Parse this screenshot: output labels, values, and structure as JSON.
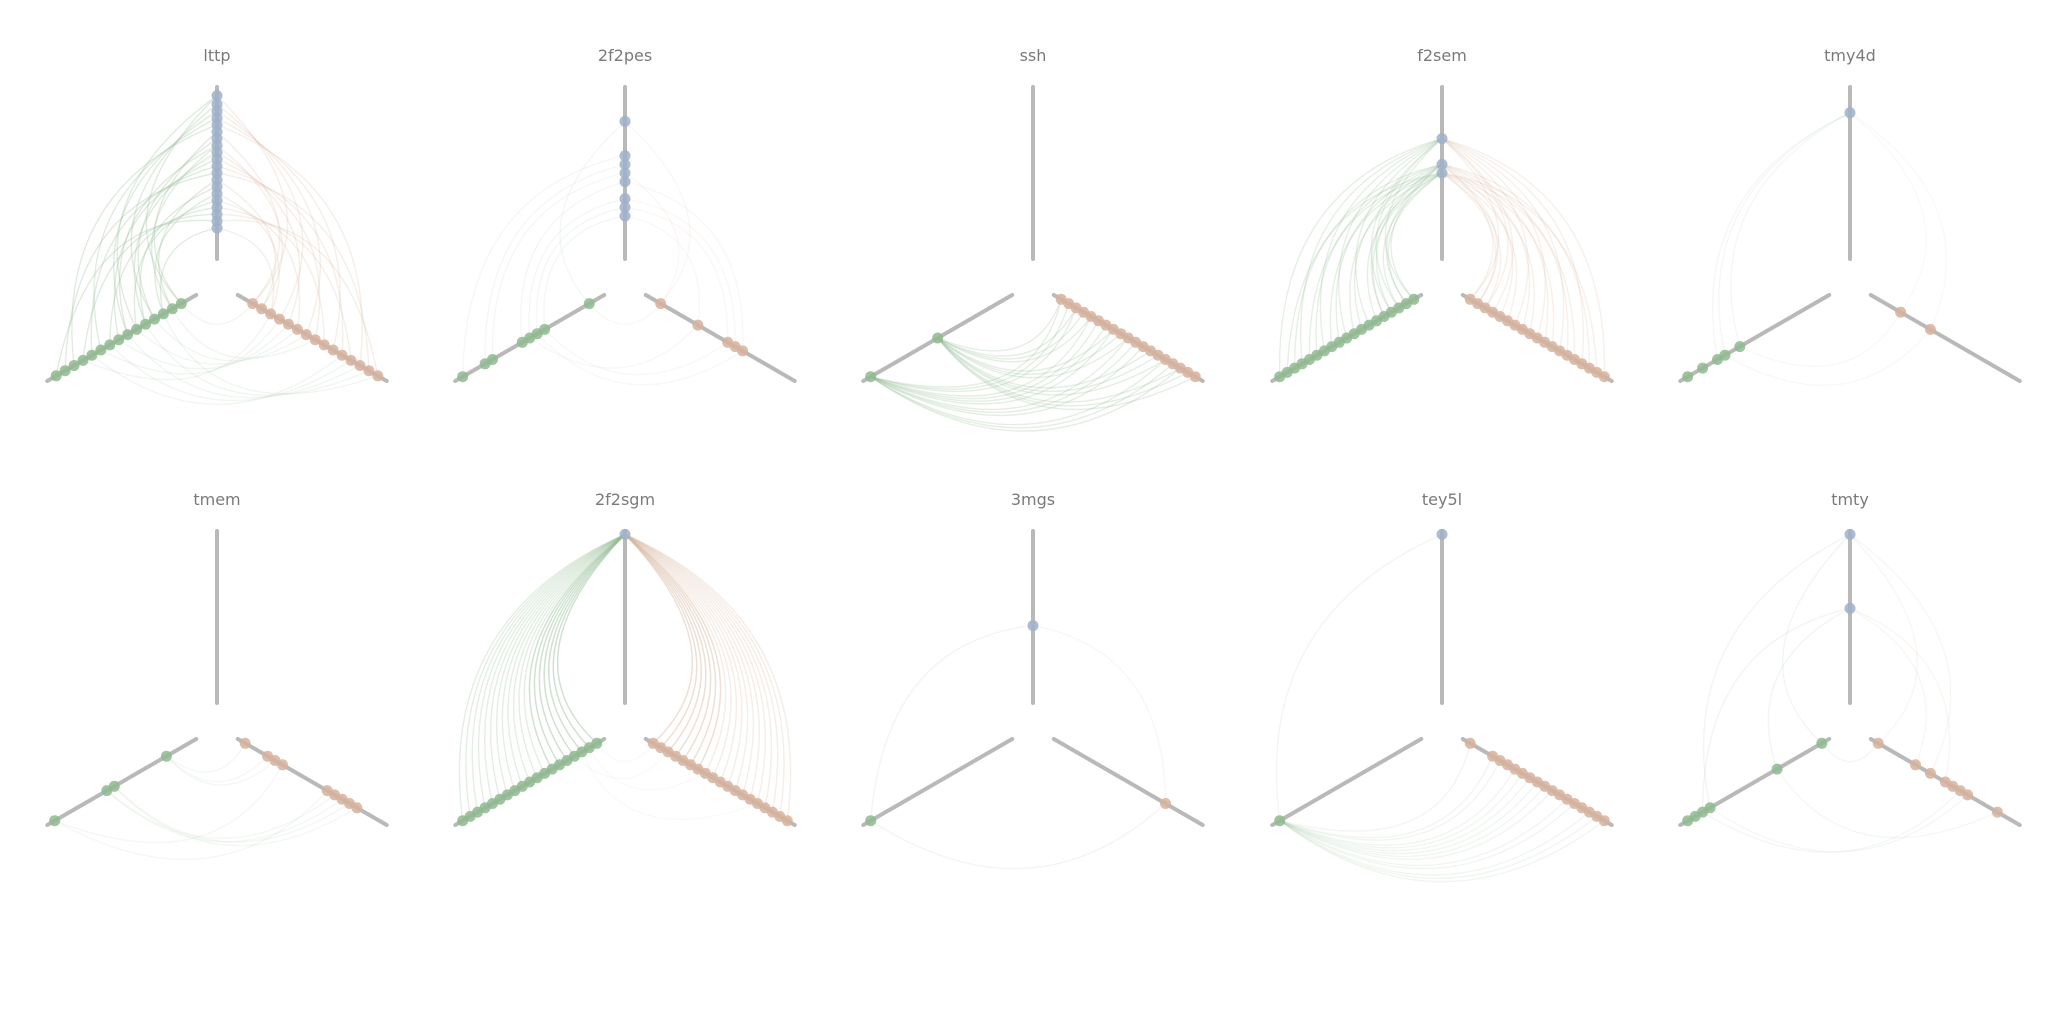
{
  "chart_data": {
    "type": "hive",
    "titles": [
      "lttp",
      "2f2pes",
      "ssh",
      "f2sem",
      "tmy4d",
      "tmem",
      "2f2sgm",
      "3mgs",
      "tey5l",
      "tmty"
    ],
    "axes": [
      "axis-top",
      "axis-lower-right",
      "axis-lower-left"
    ],
    "colors": {
      "axis": "#b9b9b9",
      "axis_top_nodes": "#9fb0c9",
      "axis_right_nodes": "#d6b29c",
      "axis_left_nodes": "#8fb88f",
      "edges_from_left": "#8fb88f",
      "edges_from_right": "#d6b29c",
      "edges_from_top": "#9fb0c9"
    },
    "panels": [
      {
        "title": "lttp",
        "nodes": {
          "top": [
            0.95,
            0.9,
            0.86,
            0.82,
            0.78,
            0.74,
            0.7,
            0.66,
            0.62,
            0.58,
            0.54,
            0.5,
            0.46,
            0.42,
            0.38,
            0.34,
            0.3,
            0.26,
            0.22,
            0.18
          ],
          "right": [
            0.1,
            0.16,
            0.22,
            0.28,
            0.34,
            0.4,
            0.46,
            0.52,
            0.58,
            0.64,
            0.7,
            0.76,
            0.82,
            0.88,
            0.94
          ],
          "left": [
            0.1,
            0.16,
            0.22,
            0.28,
            0.34,
            0.4,
            0.46,
            0.52,
            0.58,
            0.64,
            0.7,
            0.76,
            0.82,
            0.88,
            0.94
          ]
        },
        "edges": [
          {
            "from": "left",
            "to": "top",
            "count": 22,
            "opacity": 0.28
          },
          {
            "from": "right",
            "to": "top",
            "count": 18,
            "opacity": 0.22
          },
          {
            "from": "left",
            "to": "right",
            "count": 12,
            "opacity": 0.12
          }
        ]
      },
      {
        "title": "2f2pes",
        "nodes": {
          "top": [
            0.8,
            0.6,
            0.55,
            0.5,
            0.45,
            0.35,
            0.3,
            0.25
          ],
          "right": [
            0.1,
            0.35,
            0.55,
            0.6,
            0.65
          ],
          "left": [
            0.1,
            0.4,
            0.45,
            0.5,
            0.55,
            0.75,
            0.8,
            0.95
          ]
        },
        "edges": [
          {
            "from": "left",
            "to": "top",
            "count": 8,
            "opacity": 0.1
          },
          {
            "from": "right",
            "to": "top",
            "count": 6,
            "opacity": 0.1
          },
          {
            "from": "left",
            "to": "right",
            "count": 4,
            "opacity": 0.08
          }
        ]
      },
      {
        "title": "ssh",
        "nodes": {
          "top": [],
          "right": [
            0.05,
            0.1,
            0.15,
            0.2,
            0.25,
            0.3,
            0.35,
            0.4,
            0.45,
            0.5,
            0.55,
            0.6,
            0.65,
            0.7,
            0.75,
            0.8,
            0.85,
            0.9,
            0.95
          ],
          "left": [
            0.5,
            0.95
          ]
        },
        "edges": [
          {
            "from": "left",
            "to": "right",
            "count": 26,
            "opacity": 0.24
          }
        ]
      },
      {
        "title": "f2sem",
        "nodes": {
          "top": [
            0.7,
            0.55,
            0.5
          ],
          "right": [
            0.05,
            0.1,
            0.15,
            0.2,
            0.25,
            0.3,
            0.35,
            0.4,
            0.45,
            0.5,
            0.55,
            0.6,
            0.65,
            0.7,
            0.75,
            0.8,
            0.85,
            0.9,
            0.95
          ],
          "left": [
            0.05,
            0.1,
            0.15,
            0.2,
            0.25,
            0.3,
            0.35,
            0.4,
            0.45,
            0.5,
            0.55,
            0.6,
            0.65,
            0.7,
            0.75,
            0.8,
            0.85,
            0.9,
            0.95
          ]
        },
        "edges": [
          {
            "from": "left",
            "to": "top",
            "count": 24,
            "opacity": 0.22
          },
          {
            "from": "right",
            "to": "top",
            "count": 22,
            "opacity": 0.2
          }
        ]
      },
      {
        "title": "tmy4d",
        "nodes": {
          "top": [
            0.85
          ],
          "right": [
            0.2,
            0.4
          ],
          "left": [
            0.6,
            0.7,
            0.75,
            0.85,
            0.95
          ]
        },
        "edges": [
          {
            "from": "left",
            "to": "top",
            "count": 3,
            "opacity": 0.1
          },
          {
            "from": "right",
            "to": "top",
            "count": 2,
            "opacity": 0.08
          },
          {
            "from": "left",
            "to": "right",
            "count": 2,
            "opacity": 0.08
          }
        ]
      },
      {
        "title": "tmem",
        "nodes": {
          "top": [],
          "right": [
            0.05,
            0.2,
            0.25,
            0.3,
            0.6,
            0.65,
            0.7,
            0.75,
            0.8
          ],
          "left": [
            0.2,
            0.55,
            0.6,
            0.95
          ]
        },
        "edges": [
          {
            "from": "left",
            "to": "right",
            "count": 9,
            "opacity": 0.1
          }
        ]
      },
      {
        "title": "2f2sgm",
        "nodes": {
          "top": [
            0.98
          ],
          "right": [
            0.05,
            0.1,
            0.15,
            0.2,
            0.25,
            0.3,
            0.35,
            0.4,
            0.45,
            0.5,
            0.55,
            0.6,
            0.65,
            0.7,
            0.75,
            0.8,
            0.85,
            0.9,
            0.95
          ],
          "left": [
            0.05,
            0.1,
            0.15,
            0.2,
            0.25,
            0.3,
            0.35,
            0.4,
            0.45,
            0.5,
            0.55,
            0.6,
            0.65,
            0.7,
            0.75,
            0.8,
            0.85,
            0.9,
            0.95
          ]
        },
        "edges": [
          {
            "from": "left",
            "to": "top",
            "count": 26,
            "opacity": 0.24
          },
          {
            "from": "right",
            "to": "top",
            "count": 26,
            "opacity": 0.24
          },
          {
            "from": "left",
            "to": "right",
            "count": 4,
            "opacity": 0.06
          }
        ]
      },
      {
        "title": "3mgs",
        "nodes": {
          "top": [
            0.45
          ],
          "right": [
            0.75
          ],
          "left": [
            0.95
          ]
        },
        "edges": [
          {
            "from": "left",
            "to": "top",
            "count": 1,
            "opacity": 0.12
          },
          {
            "from": "right",
            "to": "top",
            "count": 1,
            "opacity": 0.12
          },
          {
            "from": "left",
            "to": "right",
            "count": 1,
            "opacity": 0.12
          }
        ]
      },
      {
        "title": "tey5l",
        "nodes": {
          "top": [
            0.98
          ],
          "right": [
            0.05,
            0.2,
            0.25,
            0.3,
            0.35,
            0.4,
            0.45,
            0.5,
            0.55,
            0.6,
            0.65,
            0.7,
            0.75,
            0.8,
            0.85,
            0.9,
            0.95
          ],
          "left": [
            0.95
          ]
        },
        "edges": [
          {
            "from": "left",
            "to": "top",
            "count": 1,
            "opacity": 0.12
          },
          {
            "from": "left",
            "to": "right",
            "count": 14,
            "opacity": 0.12
          }
        ]
      },
      {
        "title": "tmty",
        "nodes": {
          "top": [
            0.98,
            0.55
          ],
          "right": [
            0.05,
            0.3,
            0.4,
            0.5,
            0.55,
            0.6,
            0.65,
            0.85
          ],
          "left": [
            0.05,
            0.35,
            0.8,
            0.85,
            0.9,
            0.95
          ]
        },
        "edges": [
          {
            "from": "left",
            "to": "top",
            "count": 4,
            "opacity": 0.12
          },
          {
            "from": "right",
            "to": "top",
            "count": 4,
            "opacity": 0.12
          },
          {
            "from": "left",
            "to": "right",
            "count": 4,
            "opacity": 0.1
          }
        ]
      }
    ]
  }
}
